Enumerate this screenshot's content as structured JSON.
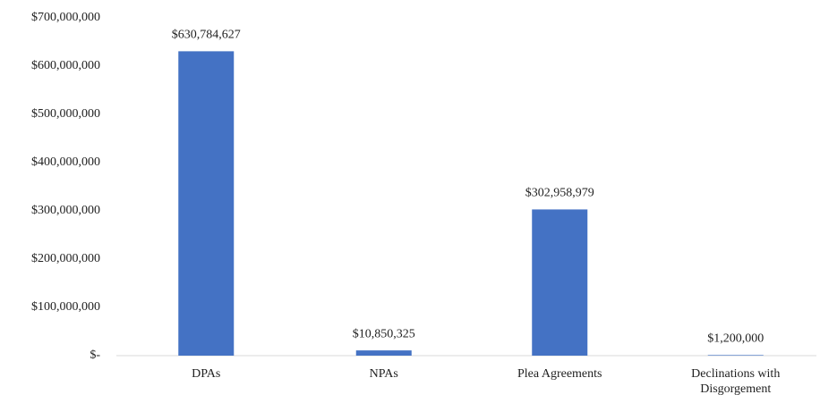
{
  "chart_data": {
    "type": "bar",
    "categories": [
      "DPAs",
      "NPAs",
      "Plea Agreements",
      "Declinations with Disgorgement"
    ],
    "values": [
      630784627,
      10850325,
      302958979,
      1200000
    ],
    "value_labels": [
      "$630,784,627",
      "$10,850,325",
      "$302,958,979",
      "$1,200,000"
    ],
    "color": "#4472c4",
    "ylim": [
      0,
      700000000
    ],
    "yticks": [
      {
        "value": 0,
        "label": "$-"
      },
      {
        "value": 100000000,
        "label": "$100,000,000"
      },
      {
        "value": 200000000,
        "label": "$200,000,000"
      },
      {
        "value": 300000000,
        "label": "$300,000,000"
      },
      {
        "value": 400000000,
        "label": "$400,000,000"
      },
      {
        "value": 500000000,
        "label": "$500,000,000"
      },
      {
        "value": 600000000,
        "label": "$600,000,000"
      },
      {
        "value": 700000000,
        "label": "$700,000,000"
      }
    ],
    "grid": false
  }
}
